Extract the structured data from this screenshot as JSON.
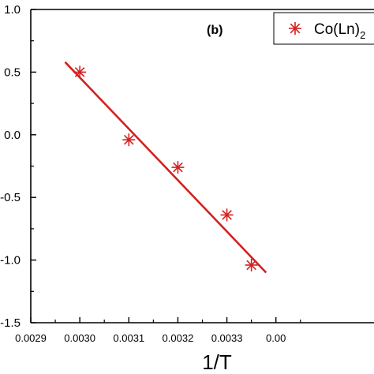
{
  "chart_data": {
    "type": "scatter",
    "panel_label": "(b)",
    "xlabel": "1/T",
    "ylabel": "",
    "xlim": [
      0.0029,
      0.0036
    ],
    "ylim": [
      -1.5,
      1.0
    ],
    "x_ticks": [
      "0.0029",
      "0.0030",
      "0.0031",
      "0.0032",
      "0.0033",
      "0.00"
    ],
    "y_ticks": [
      "1.0",
      "0.5",
      "0.0",
      "-0.5",
      "-1.0",
      "-1.5"
    ],
    "x_tick_values": [
      0.0029,
      0.003,
      0.0031,
      0.0032,
      0.0033,
      0.0034
    ],
    "y_tick_values": [
      1.0,
      0.5,
      0.0,
      -0.5,
      -1.0,
      -1.5
    ],
    "grid": false,
    "legend_position": "top-right",
    "series": [
      {
        "name": "Co(Ln)",
        "name_subscript": "2",
        "marker": "asterisk",
        "color": "#d42020",
        "points": [
          {
            "x": 0.003,
            "y": 0.5
          },
          {
            "x": 0.0031,
            "y": -0.04
          },
          {
            "x": 0.0032,
            "y": -0.26
          },
          {
            "x": 0.0033,
            "y": -0.64
          },
          {
            "x": 0.00335,
            "y": -1.04
          }
        ]
      }
    ],
    "fit_line": {
      "color": "#d42020",
      "x": [
        0.00297,
        0.00338
      ],
      "y": [
        0.58,
        -1.1
      ]
    }
  }
}
